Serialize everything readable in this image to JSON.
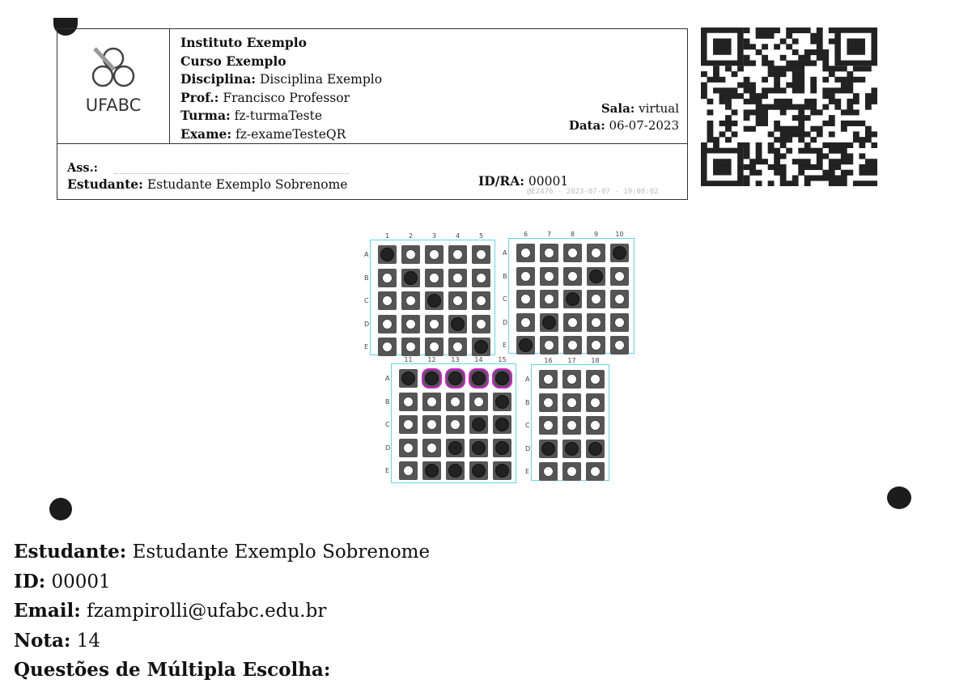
{
  "header": {
    "logo_text": "UFABC",
    "institute": "Instituto Exemplo",
    "course": "Curso Exemplo",
    "discipline_label": "Disciplina:",
    "discipline": "Disciplina Exemplo",
    "prof_label": "Prof.:",
    "prof": "Francisco Professor",
    "class_label": "Turma:",
    "class": "fz-turmaTeste",
    "exam_label": "Exame:",
    "exam": "fz-exameTesteQR",
    "room_label": "Sala:",
    "room": "virtual",
    "date_label": "Data:",
    "date": "06-07-2023",
    "sign_label": "Ass.:",
    "student_label": "Estudante:",
    "student": "Estudante Exemplo Sobrenome",
    "id_label": "ID/RA:",
    "id": "00001",
    "stamp": "@E2476 - 2023-07-07 - 19:08:02"
  },
  "answer_grids": [
    {
      "questions": [
        "1",
        "2",
        "3",
        "4",
        "5"
      ],
      "rows": [
        "A",
        "B",
        "C",
        "D",
        "E"
      ],
      "marked": [
        [
          0,
          0
        ],
        [
          1,
          1
        ],
        [
          2,
          2
        ],
        [
          3,
          3
        ],
        [
          4,
          4
        ]
      ],
      "highlighted": []
    },
    {
      "questions": [
        "6",
        "7",
        "8",
        "9",
        "10"
      ],
      "rows": [
        "A",
        "B",
        "C",
        "D",
        "E"
      ],
      "marked": [
        [
          0,
          4
        ],
        [
          1,
          3
        ],
        [
          2,
          2
        ],
        [
          3,
          1
        ],
        [
          4,
          0
        ]
      ],
      "highlighted": []
    },
    {
      "questions": [
        "11",
        "12",
        "13",
        "14",
        "15"
      ],
      "rows": [
        "A",
        "B",
        "C",
        "D",
        "E"
      ],
      "marked": [
        [
          0,
          0
        ],
        [
          0,
          1
        ],
        [
          0,
          2
        ],
        [
          0,
          3
        ],
        [
          0,
          4
        ],
        [
          1,
          4
        ],
        [
          2,
          3
        ],
        [
          2,
          4
        ],
        [
          3,
          2
        ],
        [
          3,
          3
        ],
        [
          3,
          4
        ],
        [
          4,
          1
        ],
        [
          4,
          2
        ],
        [
          4,
          3
        ],
        [
          4,
          4
        ]
      ],
      "highlighted": [
        [
          0,
          1
        ],
        [
          0,
          2
        ],
        [
          0,
          3
        ],
        [
          0,
          4
        ]
      ]
    },
    {
      "questions": [
        "16",
        "17",
        "18"
      ],
      "rows": [
        "A",
        "B",
        "C",
        "D",
        "E"
      ],
      "marked": [
        [
          3,
          0
        ],
        [
          3,
          1
        ],
        [
          3,
          2
        ]
      ],
      "highlighted": []
    }
  ],
  "summary": {
    "student_label": "Estudante:",
    "student": "Estudante Exemplo Sobrenome",
    "id_label": "ID:",
    "id": "00001",
    "email_label": "Email:",
    "email": "fzampirolli@ufabc.edu.br",
    "grade_label": "Nota:",
    "grade": "14",
    "mcq_label": "Questões de Múltipla Escolha:"
  }
}
